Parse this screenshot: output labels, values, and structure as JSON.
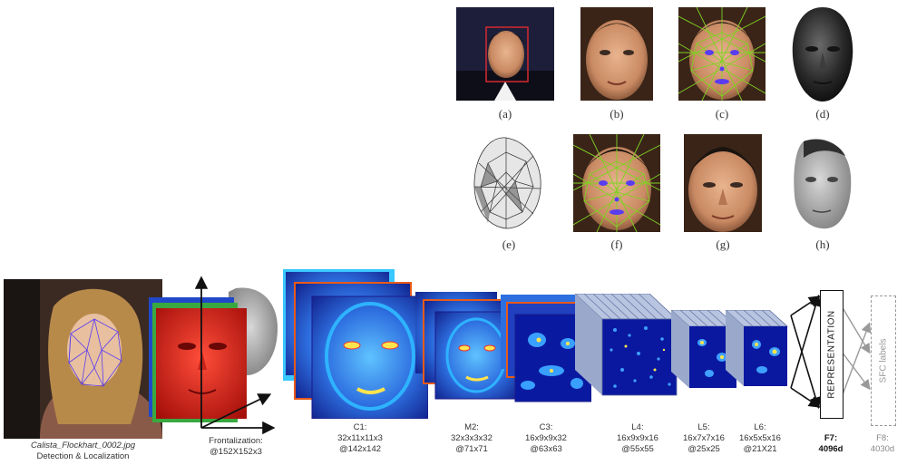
{
  "panels": [
    {
      "id": "a",
      "label": "(a)"
    },
    {
      "id": "b",
      "label": "(b)"
    },
    {
      "id": "c",
      "label": "(c)"
    },
    {
      "id": "d",
      "label": "(d)"
    },
    {
      "id": "e",
      "label": "(e)"
    },
    {
      "id": "f",
      "label": "(f)"
    },
    {
      "id": "g",
      "label": "(g)"
    },
    {
      "id": "h",
      "label": "(h)"
    }
  ],
  "pipeline": {
    "input": {
      "filename": "Calista_Flockhart_0002.jpg",
      "caption": "Detection & Localization"
    },
    "frontalization": {
      "line1": "Frontalization:",
      "line2": "@152X152x3"
    },
    "layers": [
      {
        "id": "c1",
        "line1": "C1:",
        "line2": "32x11x11x3",
        "line3": "@142x142"
      },
      {
        "id": "m2",
        "line1": "M2:",
        "line2": "32x3x3x32",
        "line3": "@71x71"
      },
      {
        "id": "c3",
        "line1": "C3:",
        "line2": "16x9x9x32",
        "line3": "@63x63"
      },
      {
        "id": "l4",
        "line1": "L4:",
        "line2": "16x9x9x16",
        "line3": "@55x55"
      },
      {
        "id": "l5",
        "line1": "L5:",
        "line2": "16x7x7x16",
        "line3": "@25x25"
      },
      {
        "id": "l6",
        "line1": "L6:",
        "line2": "16x5x5x16",
        "line3": "@21X21"
      }
    ],
    "f7": {
      "box": "REPRESENTATION",
      "line1": "F7:",
      "line2": "4096d"
    },
    "f8": {
      "box": "SFC labels",
      "line1": "F8:",
      "line2": "4030d"
    }
  },
  "colors": {
    "bbox": "#d7282f",
    "mesh": "#7ed321",
    "landmark": "#5a3cf0",
    "heat_low": "#0a2a9c",
    "heat_mid": "#39a0ff",
    "heat_high": "#ffe44d"
  }
}
